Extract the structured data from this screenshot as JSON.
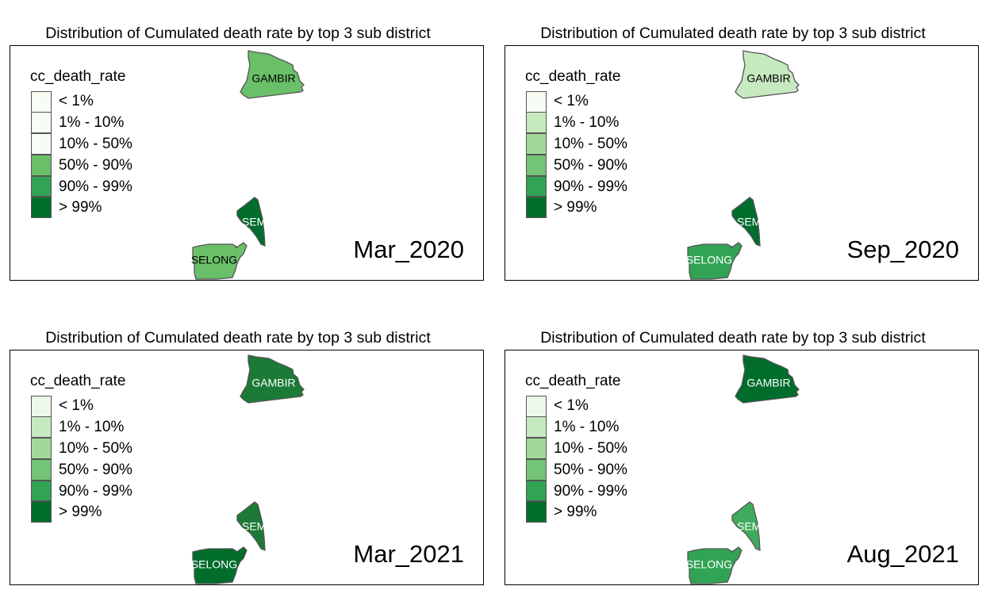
{
  "legend": {
    "title": "cc_death_rate",
    "classes": [
      "< 1%",
      "1% - 10%",
      "10% - 50%",
      "50% - 90%",
      "90% - 99%",
      "> 99%"
    ],
    "colors": [
      "#f7fcf5",
      "#c7e9c0",
      "#a1d99b",
      "#74c476",
      "#31a354",
      "#006d2c"
    ]
  },
  "panels": [
    {
      "title": "Distribution of Cumulated death rate by top 3 sub district",
      "period": "Mar_2020",
      "legend_colors": [
        "#f7fcf5",
        "#f7fcf5",
        "#f7fcf5",
        "#6abf69",
        "#31a354",
        "#006d2c"
      ],
      "regions": [
        {
          "name": "GAMBIR",
          "label": "GAMBIR",
          "fill": "#6abf69",
          "label_color": "#000000"
        },
        {
          "name": "SEMANGGI",
          "label": "SEM",
          "fill": "#006d2c",
          "label_color": "#ffffff"
        },
        {
          "name": "SELONG",
          "label": "SELONG",
          "fill": "#6abf69",
          "label_color": "#000000"
        }
      ]
    },
    {
      "title": "Distribution of Cumulated death rate by top 3 sub district",
      "period": "Sep_2020",
      "legend_colors": [
        "#f7fcf5",
        "#c7e9c0",
        "#a1d99b",
        "#74c476",
        "#31a354",
        "#006d2c"
      ],
      "regions": [
        {
          "name": "GAMBIR",
          "label": "GAMBIR",
          "fill": "#c7e9c0",
          "label_color": "#000000"
        },
        {
          "name": "SEMANGGI",
          "label": "SEM",
          "fill": "#006d2c",
          "label_color": "#ffffff"
        },
        {
          "name": "SELONG",
          "label": "SELONG",
          "fill": "#31a354",
          "label_color": "#ffffff"
        }
      ]
    },
    {
      "title": "Distribution of Cumulated death rate by top 3 sub district",
      "period": "Mar_2021",
      "legend_colors": [
        "#edf8e9",
        "#c7e9c0",
        "#a1d99b",
        "#74c476",
        "#31a354",
        "#006d2c"
      ],
      "regions": [
        {
          "name": "GAMBIR",
          "label": "GAMBIR",
          "fill": "#1b7a35",
          "label_color": "#ffffff"
        },
        {
          "name": "SEMANGGI",
          "label": "SEM",
          "fill": "#1b7a35",
          "label_color": "#ffffff"
        },
        {
          "name": "SELONG",
          "label": "SELONG",
          "fill": "#006d2c",
          "label_color": "#ffffff"
        }
      ]
    },
    {
      "title": "Distribution of Cumulated death rate by top 3 sub district",
      "period": "Aug_2021",
      "legend_colors": [
        "#edf8e9",
        "#c7e9c0",
        "#a1d99b",
        "#74c476",
        "#31a354",
        "#006d2c"
      ],
      "regions": [
        {
          "name": "GAMBIR",
          "label": "GAMBIR",
          "fill": "#006d2c",
          "label_color": "#ffffff"
        },
        {
          "name": "SEMANGGI",
          "label": "SEM",
          "fill": "#41ab5d",
          "label_color": "#ffffff"
        },
        {
          "name": "SELONG",
          "label": "SELONG",
          "fill": "#31a354",
          "label_color": "#ffffff"
        }
      ]
    }
  ]
}
